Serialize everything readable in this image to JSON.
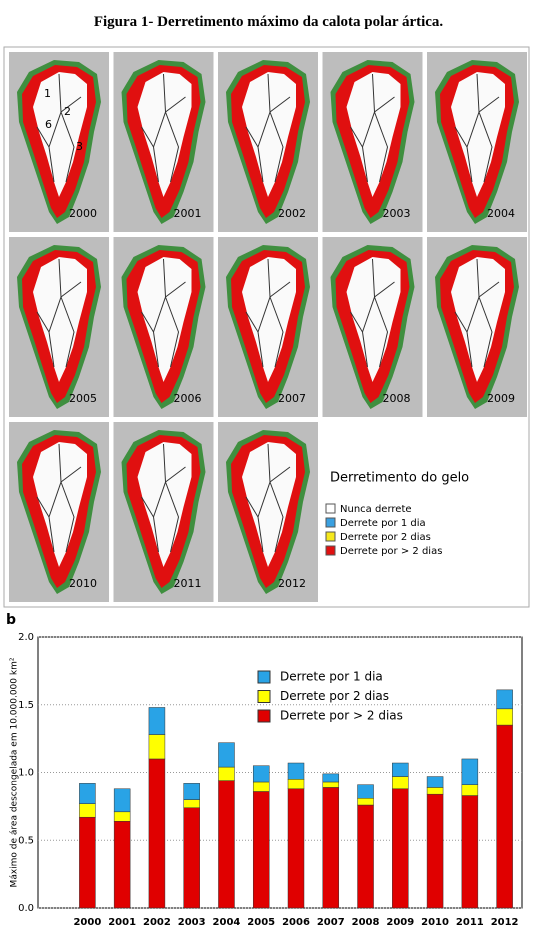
{
  "caption": "Figura 1- Derretimento máximo da calota polar ártica.",
  "maps": {
    "years": [
      "2000",
      "2001",
      "2002",
      "2003",
      "2004",
      "2005",
      "2006",
      "2007",
      "2008",
      "2009",
      "2010",
      "2011",
      "2012"
    ],
    "regions": [
      "1",
      "2",
      "6",
      "3"
    ],
    "legend_title": "Derretimento do gelo",
    "legend": [
      {
        "label": "Nunca derrete",
        "color": "#ffffff"
      },
      {
        "label": "Derrete por 1 dia",
        "color": "#3aa0e0"
      },
      {
        "label": "Derrete por 2 dias",
        "color": "#f5e81c"
      },
      {
        "label": "Derrete por > 2 dias",
        "color": "#e01010"
      }
    ]
  },
  "panel_label": "b",
  "chart_data": {
    "type": "stacked_bar",
    "y_label": "Máximo de área descongelada em 10.000.000 km²",
    "categories": [
      "2000",
      "2001",
      "2002",
      "2003",
      "2004",
      "2005",
      "2006",
      "2007",
      "2008",
      "2009",
      "2010",
      "2011",
      "2012"
    ],
    "series": [
      {
        "name": "Derrete por > 2 dias",
        "color": "#e00000",
        "values": [
          0.67,
          0.64,
          1.1,
          0.74,
          0.94,
          0.86,
          0.88,
          0.89,
          0.76,
          0.88,
          0.84,
          0.83,
          1.35
        ]
      },
      {
        "name": "Derrete por 2 dias",
        "color": "#ffff00",
        "values": [
          0.1,
          0.07,
          0.18,
          0.06,
          0.1,
          0.07,
          0.07,
          0.04,
          0.05,
          0.09,
          0.05,
          0.08,
          0.12
        ]
      },
      {
        "name": "Derrete por 1 dia",
        "color": "#29a3e6",
        "values": [
          0.15,
          0.17,
          0.2,
          0.12,
          0.18,
          0.12,
          0.12,
          0.06,
          0.1,
          0.1,
          0.08,
          0.19,
          0.14
        ]
      }
    ],
    "ylim": [
      0,
      2.0
    ],
    "yticks": [
      {
        "value": 0,
        "label": "0.0"
      },
      {
        "value": 0.5,
        "label": "0.5"
      },
      {
        "value": 1.0,
        "label": "1.0"
      },
      {
        "value": 1.5,
        "label": "1.5"
      },
      {
        "value": 2.0,
        "label": "2.0"
      }
    ],
    "grid": true
  }
}
